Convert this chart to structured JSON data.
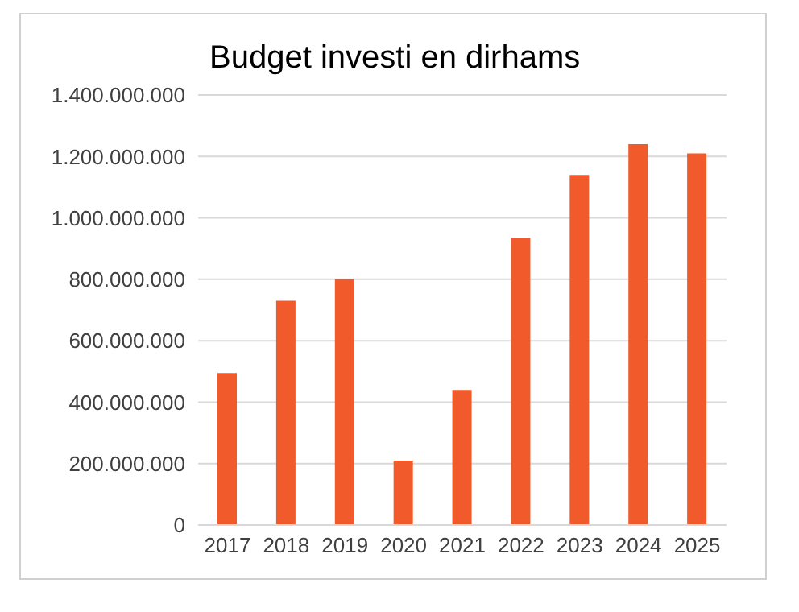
{
  "chart_data": {
    "type": "bar",
    "title": "Budget investi en dirhams",
    "categories": [
      "2017",
      "2018",
      "2019",
      "2020",
      "2021",
      "2022",
      "2023",
      "2024",
      "2025"
    ],
    "values": [
      495000000,
      730000000,
      800000000,
      210000000,
      440000000,
      935000000,
      1140000000,
      1240000000,
      1210000000
    ],
    "color": "#f15a2b",
    "ylim": [
      0,
      1400000000
    ],
    "yticks": [
      {
        "value": 0,
        "label": "0"
      },
      {
        "value": 200000000,
        "label": "200.000.000"
      },
      {
        "value": 400000000,
        "label": "400.000.000"
      },
      {
        "value": 600000000,
        "label": "600.000.000"
      },
      {
        "value": 800000000,
        "label": "800.000.000"
      },
      {
        "value": 1000000000,
        "label": "1.000.000.000"
      },
      {
        "value": 1200000000,
        "label": "1.200.000.000"
      },
      {
        "value": 1400000000,
        "label": "1.400.000.000"
      }
    ],
    "grid": "y",
    "legend": false
  }
}
